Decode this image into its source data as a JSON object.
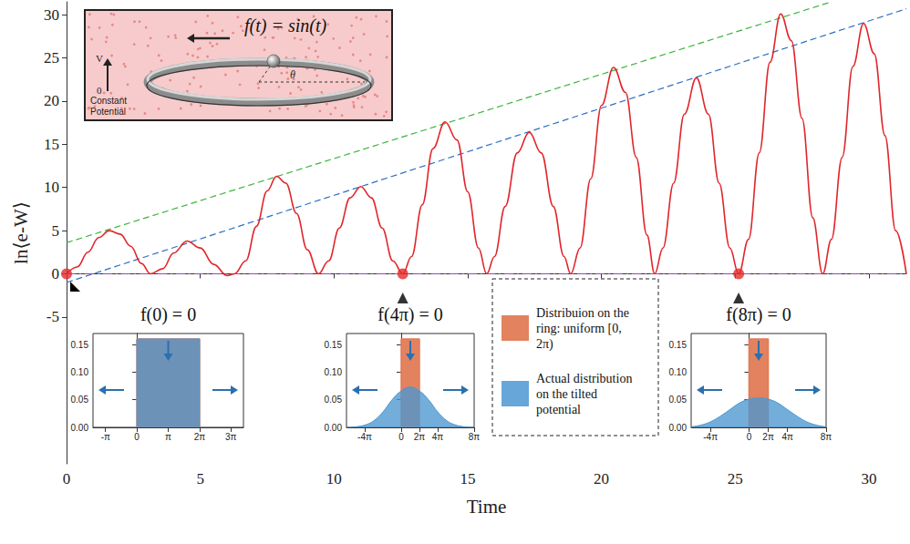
{
  "chart_data": [
    {
      "type": "line",
      "xlabel": "Time",
      "ylabel": "ln⟨e-W⟩",
      "xlim": [
        0,
        31.4
      ],
      "ylim": [
        -22,
        31.5
      ],
      "xticks": [
        0,
        5,
        10,
        15,
        20,
        25,
        30
      ],
      "yticks": [
        -5,
        0,
        5,
        10,
        15,
        20,
        25,
        30
      ],
      "grid": false,
      "series": [
        {
          "type": "line",
          "color": "#e0262b",
          "line_style": "solid",
          "x": [
            0,
            0.4,
            0.8,
            1.2,
            1.6,
            2.0,
            2.4,
            2.8,
            3.14,
            3.6,
            4.0,
            4.5,
            5.0,
            5.5,
            6.0,
            6.28,
            6.7,
            7.1,
            7.5,
            7.85,
            8.2,
            8.6,
            9.0,
            9.42,
            9.8,
            10.2,
            10.6,
            11.0,
            11.4,
            11.8,
            12.2,
            12.57,
            12.9,
            13.3,
            13.7,
            14.15,
            14.6,
            15.0,
            15.4,
            15.71,
            16.0,
            16.4,
            16.85,
            17.3,
            17.75,
            18.2,
            18.6,
            18.85,
            19.2,
            19.6,
            20.0,
            20.45,
            20.9,
            21.3,
            21.7,
            21.99,
            22.3,
            22.7,
            23.1,
            23.55,
            24.0,
            24.4,
            24.8,
            25.13,
            25.5,
            25.9,
            26.3,
            26.7,
            27.1,
            27.5,
            27.9,
            28.27,
            28.6,
            29.0,
            29.4,
            29.8,
            30.2,
            30.6,
            31.0,
            31.4
          ],
          "values": [
            0,
            0.8,
            2.5,
            4.2,
            5.0,
            4.6,
            3.2,
            1.2,
            0,
            0.6,
            2.4,
            3.8,
            3.0,
            1.1,
            -0.2,
            0,
            1.5,
            5.5,
            9.6,
            11.3,
            10.5,
            7.0,
            2.8,
            0,
            1.5,
            5.3,
            8.8,
            10.1,
            8.8,
            5.3,
            1.5,
            0,
            2.0,
            8.0,
            14.5,
            17.6,
            15.5,
            9.5,
            3.0,
            0,
            2.0,
            7.8,
            14.0,
            16.4,
            14.0,
            7.8,
            2.0,
            0,
            3.0,
            11.0,
            19.5,
            23.9,
            21.0,
            13.5,
            4.5,
            0,
            3.0,
            10.5,
            18.5,
            22.7,
            18.5,
            10.5,
            3.0,
            0,
            4.0,
            14.0,
            24.5,
            30.1,
            27.0,
            18.0,
            6.5,
            0,
            4.0,
            13.5,
            24.0,
            29.0,
            25.5,
            16.0,
            5.0,
            0
          ]
        },
        {
          "type": "line",
          "color": "#3cb43c",
          "line_style": "dashed",
          "x": [
            0,
            28.6
          ],
          "values": [
            3.6,
            31.5
          ]
        },
        {
          "type": "line",
          "color": "#2b6fc4",
          "line_style": "dashed",
          "x": [
            0,
            31.4
          ],
          "values": [
            -1,
            30.7
          ]
        },
        {
          "type": "line",
          "color": "#a040c0",
          "line_style": "dashdot",
          "x": [
            0,
            31.4
          ],
          "values": [
            0,
            0
          ]
        },
        {
          "type": "scatter",
          "color": "#e52b2b",
          "marker": "circle",
          "x": [
            0,
            12.57,
            25.13
          ],
          "values": [
            0,
            0,
            0
          ]
        },
        {
          "type": "scatter",
          "color": "#000000",
          "marker": "triangle",
          "x": [
            12.57,
            25.13
          ],
          "values": [
            -2.8,
            -2.8
          ]
        }
      ]
    },
    {
      "type": "area",
      "title": "f(0) = 0",
      "xlim": [
        -4.398,
        10.681
      ],
      "xticks": [
        {
          "value": -3.1416,
          "label": "-π"
        },
        0,
        {
          "value": 3.1416,
          "label": "π"
        },
        {
          "value": 6.2832,
          "label": "2π"
        },
        {
          "value": 9.4248,
          "label": "3π"
        }
      ],
      "ylim": [
        0,
        0.17
      ],
      "yticks": [
        {
          "value": 0,
          "label": "0.00"
        },
        0.05,
        {
          "value": 0.1,
          "label": "0.10"
        },
        0.15
      ],
      "series": [
        {
          "name": "Distribuion on the ring: uniform [0, 2π)",
          "color": "#e07b56",
          "x": [
            0,
            0,
            6.2832,
            6.2832
          ],
          "values": [
            0,
            0.16,
            0.16,
            0
          ]
        },
        {
          "name": "Actual distribution on the tilted potential",
          "color": "#4b97d1",
          "x": [
            0,
            0,
            6.2832,
            6.2832
          ],
          "values": [
            0,
            0.16,
            0.16,
            0
          ]
        }
      ]
    },
    {
      "type": "area",
      "title": "f(4π) = 0",
      "xlim": [
        -18.85,
        25.133
      ],
      "xticks": [
        {
          "value": -12.566,
          "label": "-4π"
        },
        0,
        {
          "value": 6.2832,
          "label": "2π"
        },
        {
          "value": 12.566,
          "label": "4π"
        },
        {
          "value": 25.133,
          "label": "8π"
        }
      ],
      "ylim": [
        0,
        0.17
      ],
      "yticks": [
        {
          "value": 0,
          "label": "0.00"
        },
        0.05,
        {
          "value": 0.1,
          "label": "0.10"
        },
        0.15
      ],
      "series": [
        {
          "name": "Distribuion on the ring: uniform [0, 2π)",
          "color": "#e07b56",
          "x": [
            0,
            0,
            6.2832,
            6.2832
          ],
          "values": [
            0,
            0.16,
            0.16,
            0
          ]
        },
        {
          "name": "Actual distribution on the tilted potential",
          "color": "#4b97d1",
          "x": [
            -18.85,
            -15.71,
            -12.57,
            -9.42,
            -6.28,
            -3.14,
            0,
            3.14,
            6.28,
            9.42,
            12.57,
            15.71,
            18.85,
            21.99,
            25.13
          ],
          "values": [
            0,
            0.001,
            0.004,
            0.012,
            0.028,
            0.05,
            0.066,
            0.073,
            0.066,
            0.05,
            0.028,
            0.012,
            0.004,
            0.001,
            0
          ]
        }
      ]
    },
    {
      "type": "area",
      "title": "f(8π) = 0",
      "xlim": [
        -18.85,
        25.133
      ],
      "xticks": [
        {
          "value": -12.566,
          "label": "-4π"
        },
        0,
        {
          "value": 6.2832,
          "label": "2π"
        },
        {
          "value": 12.566,
          "label": "4π"
        },
        {
          "value": 25.133,
          "label": "8π"
        }
      ],
      "ylim": [
        0,
        0.17
      ],
      "yticks": [
        {
          "value": 0,
          "label": "0.00"
        },
        0.05,
        {
          "value": 0.1,
          "label": "0.10"
        },
        0.15
      ],
      "series": [
        {
          "name": "Distribuion on the ring: uniform [0, 2π)",
          "color": "#e07b56",
          "x": [
            0,
            0,
            6.2832,
            6.2832
          ],
          "values": [
            0,
            0.16,
            0.16,
            0
          ]
        },
        {
          "name": "Actual distribution on the tilted potential",
          "color": "#4b97d1",
          "x": [
            -18.85,
            -15.71,
            -12.57,
            -9.42,
            -6.28,
            -3.14,
            0,
            3.14,
            6.28,
            9.42,
            12.57,
            15.71,
            18.85,
            21.99,
            25.13
          ],
          "values": [
            0.001,
            0.004,
            0.01,
            0.02,
            0.032,
            0.044,
            0.051,
            0.053,
            0.051,
            0.044,
            0.032,
            0.02,
            0.01,
            0.004,
            0.001
          ]
        }
      ]
    }
  ],
  "diagram": {
    "function_label": "f(t) = sin(t)",
    "potential_axis": "V",
    "potential_zero": "0",
    "angle": "θ",
    "background_label": "Constant Potential"
  }
}
